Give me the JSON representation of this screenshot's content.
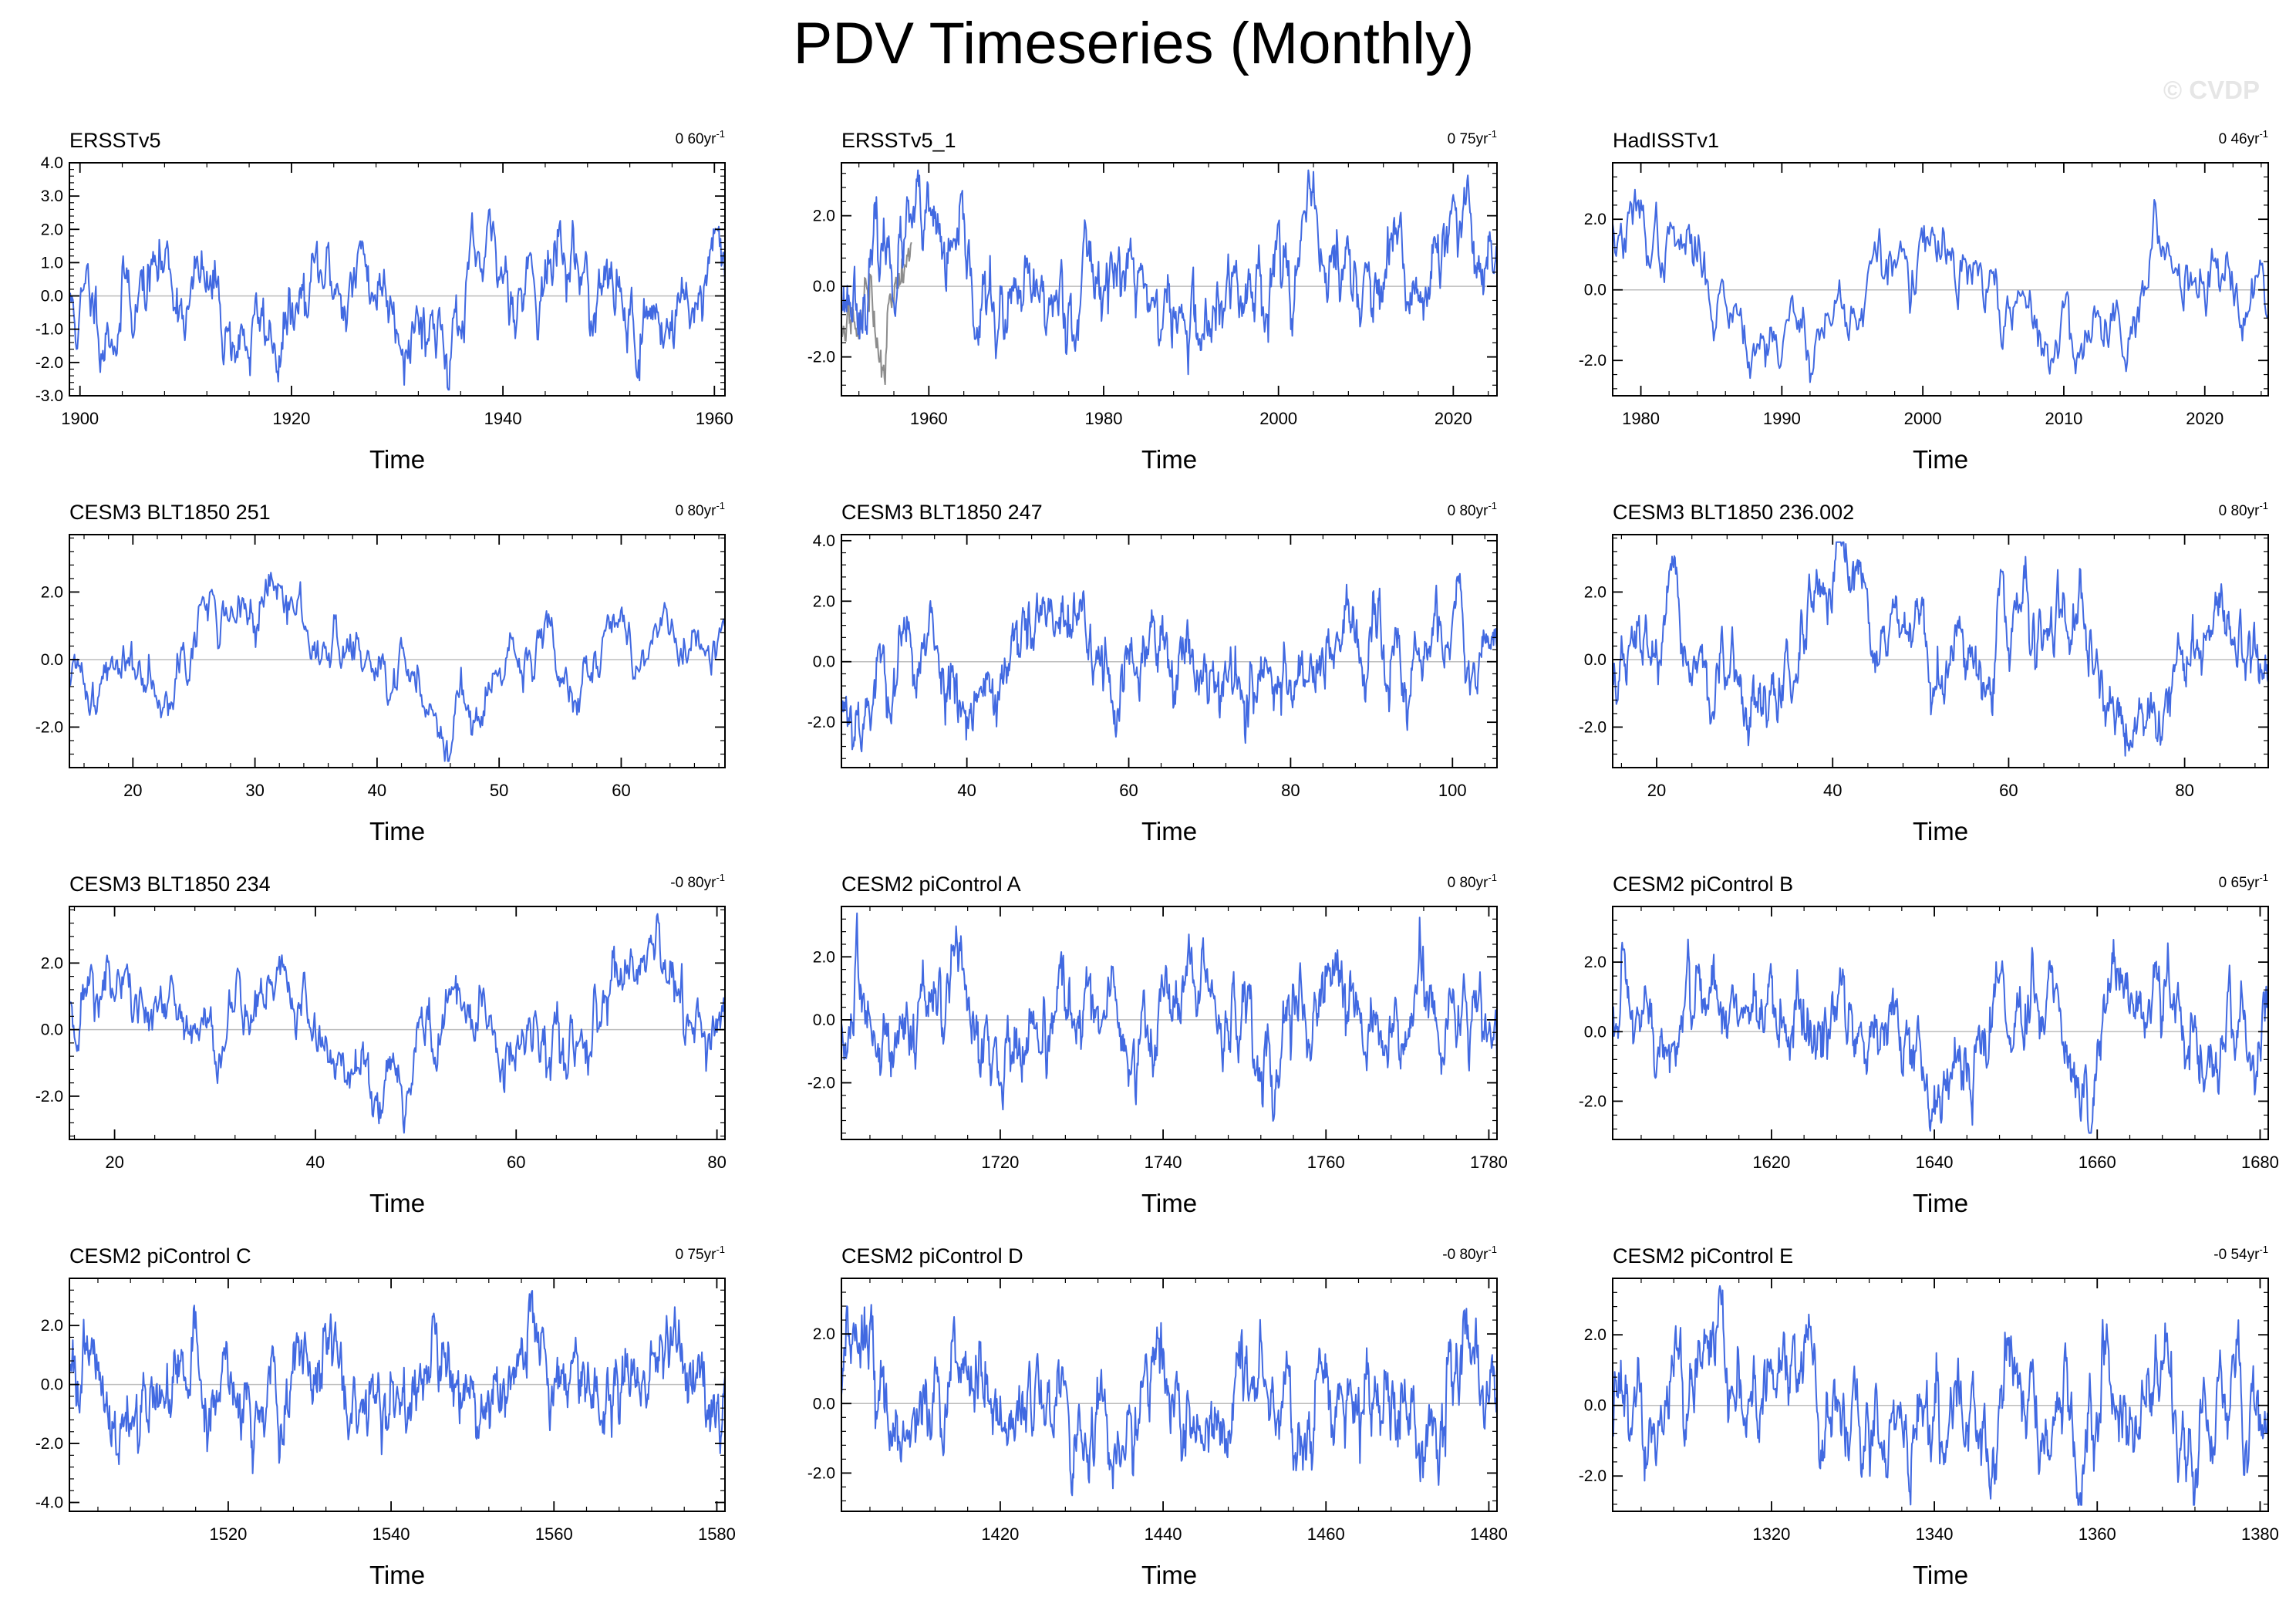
{
  "figure": {
    "title": "PDV Timeseries (Monthly)",
    "watermark": "© CVDP",
    "line_color": "#4169E1",
    "secondary_line_color": "#8c8c8c",
    "zero_line_color": "#bdbdbd"
  },
  "chart_data": [
    {
      "type": "line",
      "title": "ERSSTv5",
      "trend_value": "0 60",
      "trend_unit": "yr",
      "trend_exp": "-1",
      "xlabel": "Time",
      "ylabel": "",
      "xlim": [
        1899,
        1961
      ],
      "ylim": [
        -3.0,
        4.0
      ],
      "xticks": [
        1900,
        1920,
        1940,
        1960
      ],
      "yticks": [
        -3.0,
        -2.0,
        -1.0,
        0.0,
        1.0,
        2.0,
        3.0,
        4.0
      ],
      "y_decimals": 1,
      "seed": 11,
      "std": 0.95,
      "phi": 0.9,
      "low_amp": 0.8,
      "low_period": 18,
      "trend": 0.6
    },
    {
      "type": "line",
      "title": "ERSSTv5_1",
      "trend_value": "0 75",
      "trend_unit": "yr",
      "trend_exp": "-1",
      "xlabel": "Time",
      "ylabel": "",
      "xlim": [
        1950,
        2025
      ],
      "ylim": [
        -3.1,
        3.5
      ],
      "xticks": [
        1960,
        1980,
        2000,
        2020
      ],
      "yticks": [
        -2.0,
        0.0,
        2.0
      ],
      "y_decimals": 1,
      "seed": 23,
      "std": 0.85,
      "phi": 0.88,
      "low_amp": 0.9,
      "low_period": 22,
      "trend": 0.75,
      "secondary": true
    },
    {
      "type": "line",
      "title": "HadISSTv1",
      "trend_value": "0 46",
      "trend_unit": "yr",
      "trend_exp": "-1",
      "xlabel": "Time",
      "ylabel": "",
      "xlim": [
        1978,
        2024.5
      ],
      "ylim": [
        -3.0,
        3.6
      ],
      "xticks": [
        1980,
        1990,
        2000,
        2010,
        2020
      ],
      "yticks": [
        -2.0,
        0.0,
        2.0
      ],
      "y_decimals": 1,
      "seed": 37,
      "std": 0.8,
      "phi": 0.9,
      "low_amp": 1.0,
      "low_period": 20,
      "trend": 0.46
    },
    {
      "type": "line",
      "title": "CESM3 BLT1850 251",
      "trend_value": "0 80",
      "trend_unit": "yr",
      "trend_exp": "-1",
      "xlabel": "Time",
      "ylabel": "",
      "xlim": [
        14.8,
        68.5
      ],
      "ylim": [
        -3.2,
        3.7
      ],
      "xticks": [
        20,
        30,
        40,
        50,
        60
      ],
      "yticks": [
        -2.0,
        0.0,
        2.0
      ],
      "y_decimals": 1,
      "seed": 41,
      "std": 0.7,
      "phi": 0.9,
      "low_amp": 1.1,
      "low_period": 30,
      "trend": 0.8
    },
    {
      "type": "line",
      "title": "CESM3 BLT1850 247",
      "trend_value": "0 80",
      "trend_unit": "yr",
      "trend_exp": "-1",
      "xlabel": "Time",
      "ylabel": "",
      "xlim": [
        24.5,
        105.5
      ],
      "ylim": [
        -3.5,
        4.2
      ],
      "xticks": [
        40,
        60,
        80,
        100
      ],
      "yticks": [
        -2.0,
        0.0,
        2.0,
        4.0
      ],
      "y_decimals": 1,
      "seed": 53,
      "std": 0.9,
      "phi": 0.88,
      "low_amp": 0.7,
      "low_period": 17,
      "trend": 0.8
    },
    {
      "type": "line",
      "title": "CESM3 BLT1850 236.002",
      "trend_value": "0 80",
      "trend_unit": "yr",
      "trend_exp": "-1",
      "xlabel": "Time",
      "ylabel": "",
      "xlim": [
        15,
        89.5
      ],
      "ylim": [
        -3.2,
        3.7
      ],
      "xticks": [
        20,
        40,
        60,
        80
      ],
      "yticks": [
        -2.0,
        0.0,
        2.0
      ],
      "y_decimals": 1,
      "seed": 67,
      "std": 0.8,
      "phi": 0.9,
      "low_amp": 1.2,
      "low_period": 21,
      "trend": 0.8
    },
    {
      "type": "line",
      "title": "CESM3 BLT1850 234",
      "trend_value": "-0 80",
      "trend_unit": "yr",
      "trend_exp": "-1",
      "xlabel": "Time",
      "ylabel": "",
      "xlim": [
        15.5,
        80.8
      ],
      "ylim": [
        -3.3,
        3.7
      ],
      "xticks": [
        20,
        40,
        60,
        80
      ],
      "yticks": [
        -2.0,
        0.0,
        2.0
      ],
      "y_decimals": 1,
      "seed": 71,
      "std": 0.8,
      "phi": 0.9,
      "low_amp": 1.0,
      "low_period": 18,
      "trend": -0.8
    },
    {
      "type": "line",
      "title": "CESM2 piControl A",
      "trend_value": "0 80",
      "trend_unit": "yr",
      "trend_exp": "-1",
      "xlabel": "Time",
      "ylabel": "",
      "xlim": [
        1700.5,
        1781
      ],
      "ylim": [
        -3.8,
        3.6
      ],
      "xticks": [
        1720,
        1740,
        1760,
        1780
      ],
      "yticks": [
        -2.0,
        0.0,
        2.0
      ],
      "y_decimals": 1,
      "seed": 83,
      "std": 0.95,
      "phi": 0.88,
      "low_amp": 0.6,
      "low_period": 16,
      "trend": 0.8
    },
    {
      "type": "line",
      "title": "CESM2 piControl B",
      "trend_value": "0 65",
      "trend_unit": "yr",
      "trend_exp": "-1",
      "xlabel": "Time",
      "ylabel": "",
      "xlim": [
        1600.5,
        1681
      ],
      "ylim": [
        -3.1,
        3.6
      ],
      "xticks": [
        1620,
        1640,
        1660,
        1680
      ],
      "yticks": [
        -2.0,
        0.0,
        2.0
      ],
      "y_decimals": 1,
      "seed": 97,
      "std": 0.9,
      "phi": 0.9,
      "low_amp": 0.9,
      "low_period": 17,
      "trend": 0.65
    },
    {
      "type": "line",
      "title": "CESM2 piControl C",
      "trend_value": "0 75",
      "trend_unit": "yr",
      "trend_exp": "-1",
      "xlabel": "Time",
      "ylabel": "",
      "xlim": [
        1500.5,
        1581
      ],
      "ylim": [
        -4.3,
        3.6
      ],
      "xticks": [
        1520,
        1540,
        1560,
        1580
      ],
      "yticks": [
        -4.0,
        -2.0,
        0.0,
        2.0
      ],
      "y_decimals": 1,
      "seed": 101,
      "std": 1.0,
      "phi": 0.88,
      "low_amp": 0.6,
      "low_period": 15,
      "trend": 0.75
    },
    {
      "type": "line",
      "title": "CESM2 piControl D",
      "trend_value": "-0 80",
      "trend_unit": "yr",
      "trend_exp": "-1",
      "xlabel": "Time",
      "ylabel": "",
      "xlim": [
        1400.5,
        1481
      ],
      "ylim": [
        -3.1,
        3.6
      ],
      "xticks": [
        1420,
        1440,
        1460,
        1480
      ],
      "yticks": [
        -2.0,
        0.0,
        2.0
      ],
      "y_decimals": 1,
      "seed": 113,
      "std": 0.95,
      "phi": 0.88,
      "low_amp": 0.7,
      "low_period": 12,
      "trend": -0.8
    },
    {
      "type": "line",
      "title": "CESM2 piControl E",
      "trend_value": "-0 54",
      "trend_unit": "yr",
      "trend_exp": "-1",
      "xlabel": "Time",
      "ylabel": "",
      "xlim": [
        1300.5,
        1381
      ],
      "ylim": [
        -3.0,
        3.6
      ],
      "xticks": [
        1320,
        1340,
        1360,
        1380
      ],
      "yticks": [
        -2.0,
        0.0,
        2.0
      ],
      "y_decimals": 1,
      "seed": 127,
      "std": 0.95,
      "phi": 0.88,
      "low_amp": 0.6,
      "low_period": 13,
      "trend": -0.54
    }
  ]
}
